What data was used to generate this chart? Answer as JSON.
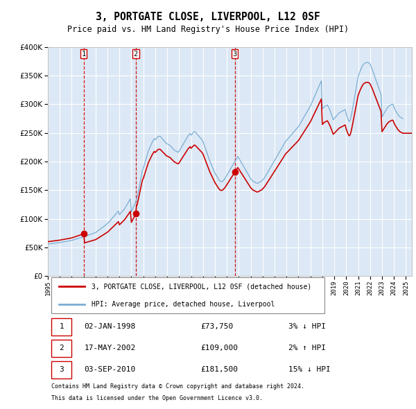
{
  "title": "3, PORTGATE CLOSE, LIVERPOOL, L12 0SF",
  "subtitle": "Price paid vs. HM Land Registry's House Price Index (HPI)",
  "property_label": "3, PORTGATE CLOSE, LIVERPOOL, L12 0SF (detached house)",
  "hpi_label": "HPI: Average price, detached house, Liverpool",
  "footer1": "Contains HM Land Registry data © Crown copyright and database right 2024.",
  "footer2": "This data is licensed under the Open Government Licence v3.0.",
  "transactions": [
    {
      "num": 1,
      "date": "02-JAN-1998",
      "price": 73750,
      "pct": "3%",
      "dir": "↓",
      "year": 1998.0
    },
    {
      "num": 2,
      "date": "17-MAY-2002",
      "price": 109000,
      "pct": "2%",
      "dir": "↑",
      "year": 2002.37
    },
    {
      "num": 3,
      "date": "03-SEP-2010",
      "price": 181500,
      "pct": "15%",
      "dir": "↓",
      "year": 2010.67
    }
  ],
  "hpi_color": "#7aadd4",
  "price_color": "#cc0000",
  "vline_color": "#cc0000",
  "dot_color": "#cc0000",
  "background_color": "#ffffff",
  "chart_bg_color": "#dce8f5",
  "grid_color": "#ffffff",
  "ylim": [
    0,
    400000
  ],
  "yticks": [
    0,
    50000,
    100000,
    150000,
    200000,
    250000,
    300000,
    350000,
    400000
  ],
  "xmin": 1995.0,
  "xmax": 2025.5,
  "xticks": [
    1995,
    1996,
    1997,
    1998,
    1999,
    2000,
    2001,
    2002,
    2003,
    2004,
    2005,
    2006,
    2007,
    2008,
    2009,
    2010,
    2011,
    2012,
    2013,
    2014,
    2015,
    2016,
    2017,
    2018,
    2019,
    2020,
    2021,
    2022,
    2023,
    2024,
    2025
  ],
  "hpi_monthly": [
    56000,
    56200,
    56400,
    56600,
    56800,
    57000,
    57200,
    57400,
    57600,
    57800,
    58000,
    58200,
    58500,
    58800,
    59100,
    59400,
    59700,
    60000,
    60300,
    60600,
    60900,
    61200,
    61500,
    61800,
    62100,
    62700,
    63200,
    63800,
    64300,
    64900,
    65400,
    66000,
    66500,
    67100,
    67700,
    68200,
    68800,
    69500,
    70000,
    70600,
    71100,
    71700,
    72300,
    72900,
    73500,
    74100,
    74700,
    75300,
    75900,
    77200,
    78500,
    79800,
    81100,
    82400,
    83700,
    85000,
    86300,
    87600,
    88900,
    90200,
    91500,
    93500,
    95500,
    97500,
    99500,
    101500,
    103500,
    105500,
    107500,
    109500,
    111500,
    113500,
    107000,
    109000,
    111000,
    113000,
    115000,
    117000,
    120000,
    123000,
    126000,
    129000,
    132000,
    135000,
    112000,
    116000,
    120000,
    124000,
    128000,
    133000,
    139000,
    148000,
    157000,
    166000,
    175000,
    184000,
    188000,
    194000,
    200000,
    206000,
    212000,
    218000,
    222000,
    226000,
    230000,
    234000,
    237000,
    240000,
    238000,
    240000,
    242000,
    244000,
    244000,
    244000,
    242000,
    240000,
    238000,
    236000,
    234000,
    232000,
    231000,
    230000,
    229000,
    228000,
    226000,
    224000,
    222000,
    220000,
    219000,
    218000,
    217000,
    216000,
    218000,
    221000,
    224000,
    227000,
    230000,
    233000,
    236000,
    239000,
    242000,
    245000,
    247000,
    249000,
    246000,
    248000,
    250000,
    252000,
    252000,
    250000,
    248000,
    246000,
    244000,
    242000,
    240000,
    238000,
    235000,
    230000,
    225000,
    220000,
    215000,
    210000,
    205000,
    200000,
    196000,
    192000,
    188000,
    184000,
    180000,
    177000,
    174000,
    171000,
    168000,
    166000,
    165000,
    165000,
    166000,
    168000,
    170000,
    173000,
    176000,
    179000,
    182000,
    185000,
    188000,
    191000,
    194000,
    197000,
    200000,
    203000,
    206000,
    209000,
    206000,
    203000,
    200000,
    197000,
    194000,
    191000,
    188000,
    185000,
    182000,
    179000,
    176000,
    173000,
    170000,
    168000,
    166000,
    165000,
    164000,
    163000,
    162000,
    162000,
    163000,
    164000,
    165000,
    166000,
    168000,
    170000,
    172000,
    175000,
    178000,
    181000,
    184000,
    187000,
    190000,
    193000,
    196000,
    199000,
    202000,
    205000,
    208000,
    211000,
    214000,
    217000,
    220000,
    223000,
    226000,
    229000,
    232000,
    235000,
    237000,
    239000,
    241000,
    243000,
    245000,
    247000,
    249000,
    251000,
    253000,
    255000,
    257000,
    259000,
    261000,
    264000,
    267000,
    270000,
    273000,
    276000,
    279000,
    282000,
    285000,
    288000,
    291000,
    294000,
    297000,
    301000,
    305000,
    309000,
    313000,
    317000,
    321000,
    325000,
    329000,
    333000,
    337000,
    341000,
    292000,
    294000,
    296000,
    297000,
    298000,
    299000,
    296000,
    292000,
    288000,
    283000,
    278000,
    273000,
    275000,
    277000,
    279000,
    281000,
    283000,
    285000,
    286000,
    287000,
    288000,
    289000,
    290000,
    291000,
    283000,
    278000,
    273000,
    270000,
    272000,
    279000,
    288000,
    298000,
    308000,
    318000,
    328000,
    338000,
    348000,
    353000,
    358000,
    362000,
    366000,
    369000,
    371000,
    372000,
    373000,
    373000,
    373000,
    372000,
    370000,
    366000,
    362000,
    357000,
    352000,
    347000,
    342000,
    337000,
    332000,
    327000,
    322000,
    317000,
    278000,
    281000,
    284000,
    287000,
    290000,
    293000,
    295000,
    297000,
    298000,
    299000,
    300000,
    300000,
    295000,
    291000,
    288000,
    285000,
    282000,
    280000,
    278000,
    277000,
    276000,
    275000
  ]
}
